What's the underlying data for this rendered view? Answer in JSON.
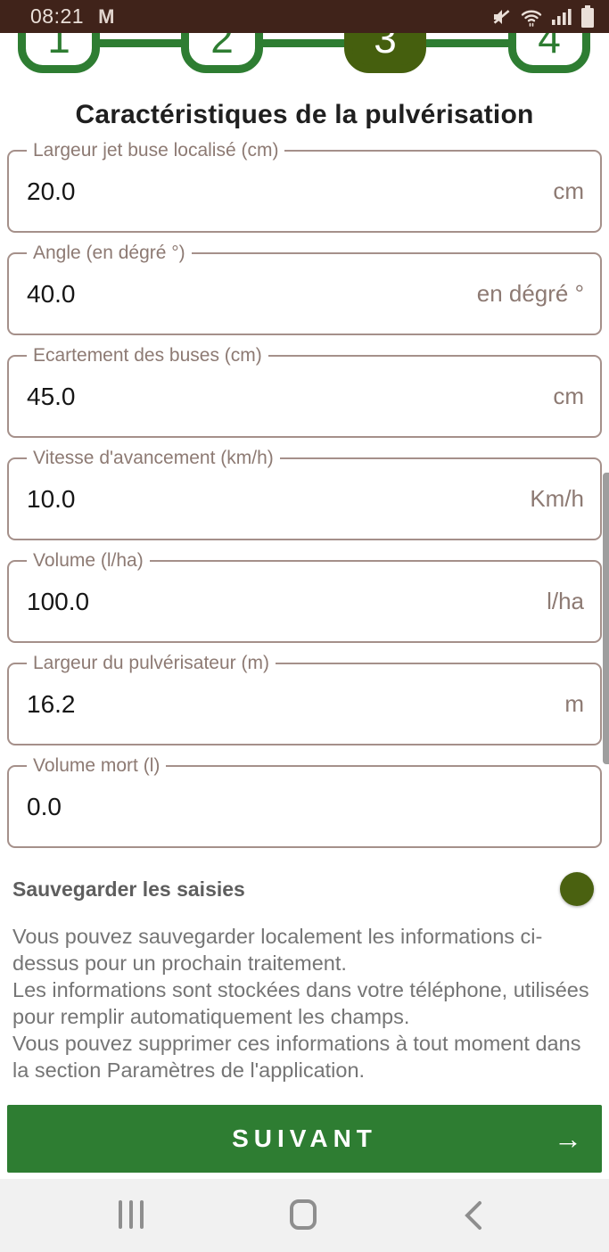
{
  "status_bar": {
    "time": "08:21",
    "notification_icon": "M",
    "right_icons": [
      "mute-icon",
      "wifi-icon",
      "signal-icon",
      "battery-icon"
    ]
  },
  "stepper": {
    "steps": [
      {
        "label": "1",
        "active": false
      },
      {
        "label": "2",
        "active": false
      },
      {
        "label": "3",
        "active": true
      },
      {
        "label": "4",
        "active": false
      }
    ]
  },
  "page": {
    "title": "Caractéristiques de la pulvérisation"
  },
  "form": {
    "fields": [
      {
        "name": "largeur-jet-buse",
        "label": "Largeur jet buse localisé (cm)",
        "value": "20.0",
        "suffix": "cm"
      },
      {
        "name": "angle",
        "label": "Angle (en dégré °)",
        "value": "40.0",
        "suffix": "en dégré °"
      },
      {
        "name": "ecartement-buses",
        "label": "Ecartement des buses (cm)",
        "value": "45.0",
        "suffix": "cm"
      },
      {
        "name": "vitesse-avancement",
        "label": "Vitesse d'avancement (km/h)",
        "value": "10.0",
        "suffix": "Km/h"
      },
      {
        "name": "volume",
        "label": "Volume (l/ha)",
        "value": "100.0",
        "suffix": "l/ha"
      },
      {
        "name": "largeur-pulverisateur",
        "label": "Largeur du pulvérisateur (m)",
        "value": "16.2",
        "suffix": "m"
      },
      {
        "name": "volume-mort",
        "label": "Volume mort (l)",
        "value": "0.0",
        "suffix": ""
      }
    ]
  },
  "save_section": {
    "toggle_label": "Sauvegarder les saisies",
    "toggle_on": true,
    "description_lines": [
      "Vous pouvez sauvegarder localement les informations ci-dessus pour un prochain traitement.",
      "Les informations sont stockées dans votre téléphone, utilisées pour remplir automatiquement les champs.",
      "Vous pouvez supprimer ces informations à tout moment dans la section Paramètres de l'application."
    ]
  },
  "footer": {
    "next_label": "SUIVANT",
    "next_arrow": "→"
  },
  "nav_bar": {
    "icons": [
      "recents-icon",
      "home-icon",
      "back-icon"
    ]
  },
  "colors": {
    "status_bar_bg": "#40231a",
    "stepper_green": "#2e7d32",
    "step_active_fill": "#455f0e",
    "field_border": "#a5908a",
    "field_label": "#8d7a73",
    "toggle_thumb_on": "#4a6110",
    "toggle_track_on": "#d4dcc2",
    "button_bg": "#2e7d32",
    "nav_bar_bg": "#f1f1f1"
  }
}
